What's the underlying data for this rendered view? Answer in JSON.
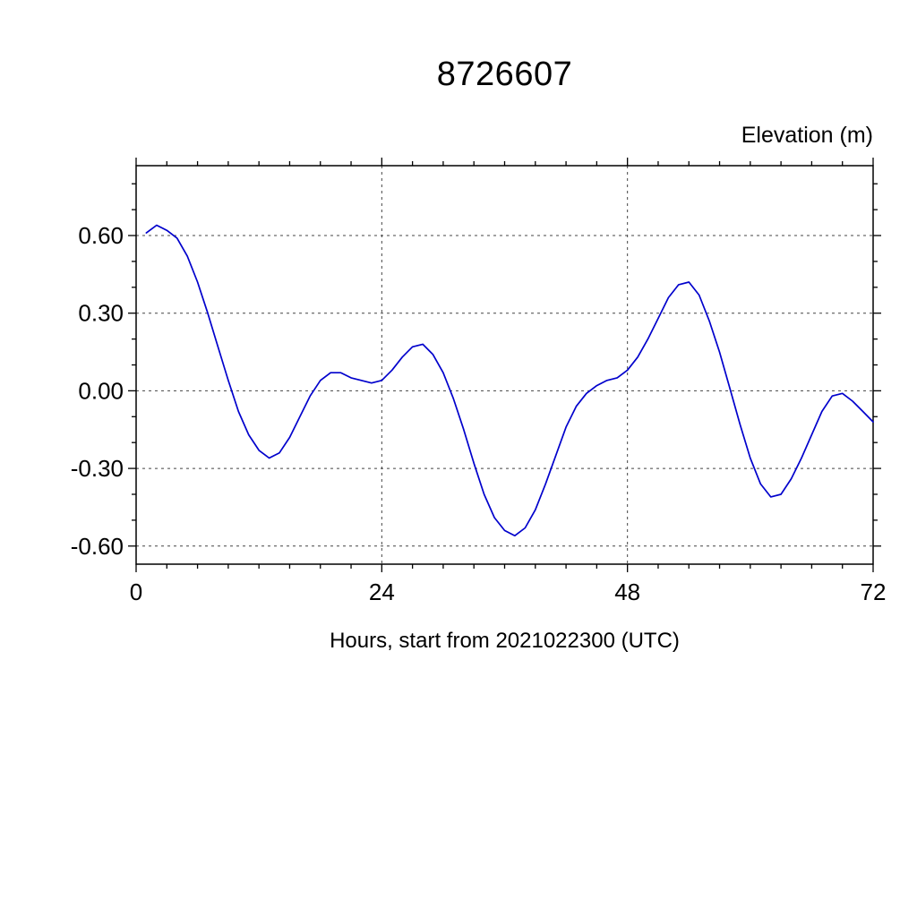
{
  "chart_data": {
    "type": "line",
    "title": "8726607",
    "ylabel": "Elevation (m)",
    "xlabel": "Hours, start from 2021022300 (UTC)",
    "xlim": [
      0,
      72
    ],
    "ylim": [
      -0.67,
      0.87
    ],
    "x_ticks": [
      0,
      24,
      48,
      72
    ],
    "y_ticks": [
      -0.6,
      -0.3,
      0.0,
      0.3,
      0.6
    ],
    "x_minor_step": 3,
    "y_minor_step": 0.1,
    "grid": "dashed",
    "legend": "none",
    "line_color": "#0000cc",
    "series": [
      {
        "name": "elevation",
        "x": [
          1,
          2,
          3,
          4,
          5,
          6,
          7,
          8,
          9,
          10,
          11,
          12,
          13,
          14,
          15,
          16,
          17,
          18,
          19,
          20,
          21,
          22,
          23,
          24,
          25,
          26,
          27,
          28,
          29,
          30,
          31,
          32,
          33,
          34,
          35,
          36,
          37,
          38,
          39,
          40,
          41,
          42,
          43,
          44,
          45,
          46,
          47,
          48,
          49,
          50,
          51,
          52,
          53,
          54,
          55,
          56,
          57,
          58,
          59,
          60,
          61,
          62,
          63,
          64,
          65,
          66,
          67,
          68,
          69,
          70,
          71,
          72
        ],
        "y": [
          0.61,
          0.64,
          0.62,
          0.59,
          0.52,
          0.42,
          0.3,
          0.17,
          0.04,
          -0.08,
          -0.17,
          -0.23,
          -0.26,
          -0.24,
          -0.18,
          -0.1,
          -0.02,
          0.04,
          0.07,
          0.07,
          0.05,
          0.04,
          0.03,
          0.04,
          0.08,
          0.13,
          0.17,
          0.18,
          0.14,
          0.07,
          -0.03,
          -0.15,
          -0.28,
          -0.4,
          -0.49,
          -0.54,
          -0.56,
          -0.53,
          -0.46,
          -0.36,
          -0.25,
          -0.14,
          -0.06,
          -0.01,
          0.02,
          0.04,
          0.05,
          0.08,
          0.13,
          0.2,
          0.28,
          0.36,
          0.41,
          0.42,
          0.37,
          0.27,
          0.15,
          0.01,
          -0.13,
          -0.26,
          -0.36,
          -0.41,
          -0.4,
          -0.34,
          -0.26,
          -0.17,
          -0.08,
          -0.02,
          -0.01,
          -0.04,
          -0.08,
          -0.12
        ]
      }
    ]
  }
}
